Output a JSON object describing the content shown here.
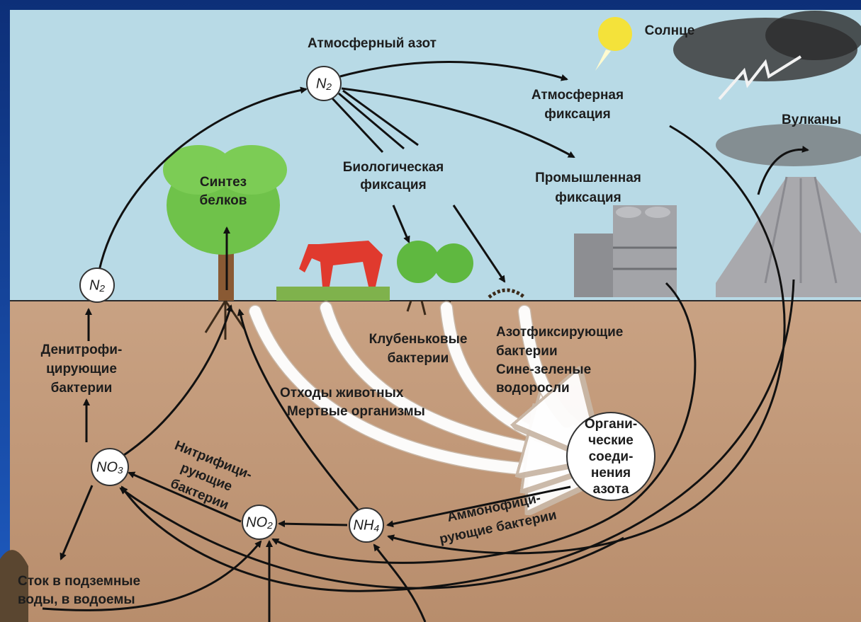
{
  "title": "Атмосферный азот",
  "labels": {
    "sun": "Солнце",
    "atmospheric_fixation": [
      "Атмосферная",
      "фиксация"
    ],
    "volcanoes": "Вулканы",
    "biological_fixation": [
      "Биологическая",
      "фиксация"
    ],
    "industrial_fixation": [
      "Промышленная",
      "фиксация"
    ],
    "protein_synthesis": [
      "Синтез",
      "белков"
    ],
    "denitrifying_bacteria": [
      "Денитрофи-",
      "цирующие",
      "бактерии"
    ],
    "nodule_bacteria": [
      "Клубеньковые",
      "бактерии"
    ],
    "nitrogen_fixing": [
      "Азотфиксирующие",
      "бактерии",
      "Сине-зеленые",
      "водоросли"
    ],
    "waste": [
      "Отходы животных",
      "Мертвые организмы"
    ],
    "nitrifying_bacteria": [
      "Нитрифици-",
      "рующие",
      "бактерии"
    ],
    "ammonifying_bacteria": [
      "Аммонофици-",
      "рующие бактерии"
    ],
    "runoff": [
      "Сток в подземные",
      "воды, в водоемы"
    ]
  },
  "nodes": {
    "n2_top": "N₂",
    "n2_left": "N₂",
    "no3": "NO₃",
    "no2": "NO₂",
    "nh4": "NH₄",
    "organic": [
      "Органи-",
      "ческие",
      "соеди-",
      "нения",
      "азота"
    ]
  }
}
